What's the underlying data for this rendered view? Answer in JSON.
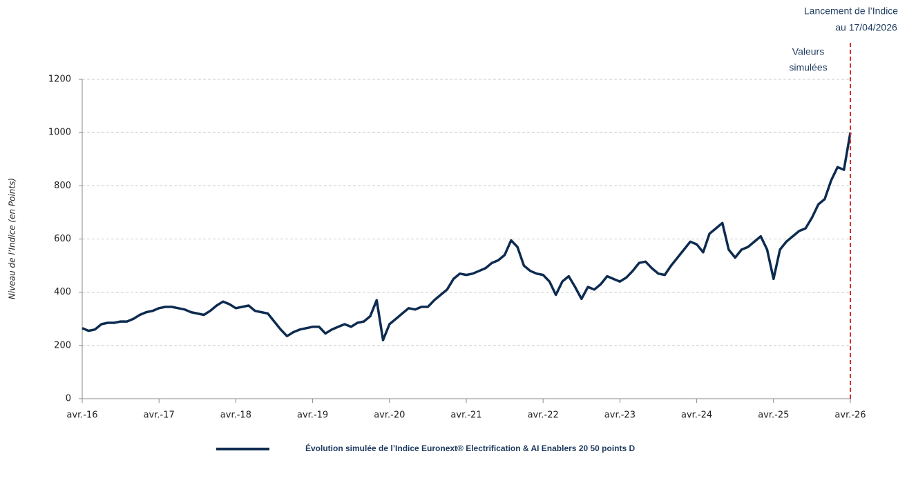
{
  "chart_data": {
    "type": "line",
    "y_label": "Niveau de l’Indice (en Points)",
    "annotations": [
      {
        "lines": [
          "Lancement de l’Indice",
          "au 17/04/2026"
        ]
      },
      {
        "lines": [
          "Valeurs",
          "simulées"
        ]
      }
    ],
    "x": [
      "2016-04",
      "2016-05",
      "2016-06",
      "2016-07",
      "2016-08",
      "2016-09",
      "2016-10",
      "2016-11",
      "2016-12",
      "2017-01",
      "2017-02",
      "2017-03",
      "2017-04",
      "2017-05",
      "2017-06",
      "2017-07",
      "2017-08",
      "2017-09",
      "2017-10",
      "2017-11",
      "2017-12",
      "2018-01",
      "2018-02",
      "2018-03",
      "2018-04",
      "2018-05",
      "2018-06",
      "2018-07",
      "2018-08",
      "2018-09",
      "2018-10",
      "2018-11",
      "2018-12",
      "2019-01",
      "2019-02",
      "2019-03",
      "2019-04",
      "2019-05",
      "2019-06",
      "2019-07",
      "2019-08",
      "2019-09",
      "2019-10",
      "2019-11",
      "2019-12",
      "2020-01",
      "2020-02",
      "2020-03",
      "2020-04",
      "2020-05",
      "2020-06",
      "2020-07",
      "2020-08",
      "2020-09",
      "2020-10",
      "2020-11",
      "2020-12",
      "2021-01",
      "2021-02",
      "2021-03",
      "2021-04",
      "2021-05",
      "2021-06",
      "2021-07",
      "2021-08",
      "2021-09",
      "2021-10",
      "2021-11",
      "2021-12",
      "2022-01",
      "2022-02",
      "2022-03",
      "2022-04",
      "2022-05",
      "2022-06",
      "2022-07",
      "2022-08",
      "2022-09",
      "2022-10",
      "2022-11",
      "2022-12",
      "2023-01",
      "2023-02",
      "2023-03",
      "2023-04",
      "2023-05",
      "2023-06",
      "2023-07",
      "2023-08",
      "2023-09",
      "2023-10",
      "2023-11",
      "2023-12",
      "2024-01",
      "2024-02",
      "2024-03",
      "2024-04",
      "2024-05",
      "2024-06",
      "2024-07",
      "2024-08",
      "2024-09",
      "2024-10",
      "2024-11",
      "2024-12",
      "2025-01",
      "2025-02",
      "2025-03",
      "2025-04",
      "2025-05",
      "2025-06",
      "2025-07",
      "2025-08",
      "2025-09",
      "2025-10",
      "2025-11",
      "2025-12",
      "2026-01",
      "2026-02",
      "2026-03",
      "2026-04"
    ],
    "series": [
      {
        "name": "Évolution simulée de l’Indice Euronext® Electrification & AI Enablers 20 50 points D",
        "color": "#0d2b50",
        "values": [
          265,
          255,
          260,
          280,
          285,
          285,
          290,
          290,
          300,
          315,
          325,
          330,
          340,
          345,
          345,
          340,
          335,
          325,
          320,
          315,
          330,
          350,
          365,
          355,
          340,
          345,
          350,
          330,
          325,
          320,
          290,
          260,
          235,
          250,
          260,
          265,
          270,
          270,
          245,
          260,
          270,
          280,
          270,
          285,
          290,
          310,
          370,
          220,
          280,
          300,
          320,
          340,
          335,
          345,
          345,
          370,
          390,
          410,
          450,
          470,
          465,
          470,
          480,
          490,
          510,
          520,
          540,
          595,
          570,
          500,
          480,
          470,
          465,
          440,
          390,
          440,
          460,
          420,
          375,
          420,
          410,
          430,
          460,
          450,
          440,
          455,
          480,
          510,
          515,
          490,
          470,
          465,
          500,
          530,
          560,
          590,
          580,
          550,
          620,
          640,
          660,
          560,
          530,
          560,
          570,
          590,
          610,
          560,
          450,
          560,
          590,
          610,
          630,
          640,
          680,
          730,
          750,
          820,
          870,
          860,
          1000
        ]
      }
    ],
    "xticks": [
      {
        "value": "2016-04",
        "label": "avr.-16"
      },
      {
        "value": "2017-04",
        "label": "avr.-17"
      },
      {
        "value": "2018-04",
        "label": "avr.-18"
      },
      {
        "value": "2019-04",
        "label": "avr.-19"
      },
      {
        "value": "2020-04",
        "label": "avr.-20"
      },
      {
        "value": "2021-04",
        "label": "avr.-21"
      },
      {
        "value": "2022-04",
        "label": "avr.-22"
      },
      {
        "value": "2023-04",
        "label": "avr.-23"
      },
      {
        "value": "2024-04",
        "label": "avr.-24"
      },
      {
        "value": "2025-04",
        "label": "avr.-25"
      },
      {
        "value": "2026-04",
        "label": "avr.-26"
      }
    ],
    "xlim": [
      "2016-04",
      "2026-04"
    ],
    "ylim": [
      0,
      1200
    ],
    "yticks": [
      0,
      200,
      400,
      600,
      800,
      1000,
      1200
    ],
    "grid": true
  }
}
